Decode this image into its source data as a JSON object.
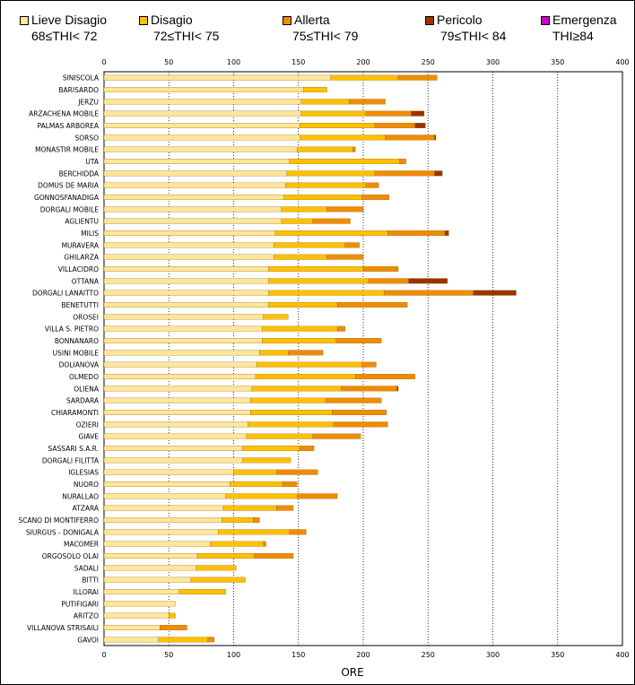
{
  "legend": [
    {
      "name": "Lieve Disagio",
      "range": "68≤THI< 72",
      "color": "#FFE699"
    },
    {
      "name": "Disagio",
      "range": "72≤THI< 75",
      "color": "#FFC000"
    },
    {
      "name": "Allerta",
      "range": "75≤THI< 79",
      "color": "#F08C00"
    },
    {
      "name": "Pericolo",
      "range": "79≤THI< 84",
      "color": "#993300"
    },
    {
      "name": "Emergenza",
      "range": "THI≥84",
      "color": "#CC00CC"
    }
  ],
  "chart_data": {
    "type": "bar",
    "orientation": "horizontal",
    "stacked": true,
    "title": "",
    "xlabel": "ORE",
    "ylabel": "",
    "xlim": [
      0,
      400
    ],
    "xticks": [
      0,
      50,
      100,
      150,
      200,
      250,
      300,
      350,
      400
    ],
    "grid": "vertical-dotted",
    "legend_position": "top",
    "categories": [
      "SINISCOLA",
      "BARISARDO",
      "JERZU",
      "ARZACHENA MOBILE",
      "PALMAS ARBOREA",
      "SORSO",
      "MONASTIR MOBILE",
      "UTA",
      "BERCHIDDA",
      "DOMUS DE MARIA",
      "GONNOSFANADIGA",
      "DORGALI MOBILE",
      "AGLIENTU",
      "MILIS",
      "MURAVERA",
      "GHILARZA",
      "VILLACIDRO",
      "OTTANA",
      "DORGALI LANAITTO",
      "BENETUTTI",
      "OROSEI",
      "VILLA S. PIETRO",
      "BONNANARO",
      "USINI MOBILE",
      "DOLIANOVA",
      "OLMEDO",
      "OLIENA",
      "SARDARA",
      "CHIARAMONTI",
      "OZIERI",
      "GIAVE",
      "SASSARI S.A.R.",
      "DORGALI FILITTA",
      "IGLESIAS",
      "NUORO",
      "NURALLAO",
      "ATZARA",
      "SCANO DI MONTIFERRO",
      "SIURGUS - DONIGALA",
      "MACOMER",
      "ORGOSOLO OLAI",
      "SADALI",
      "BITTI",
      "ILLORAI",
      "PUTIFIGARI",
      "ARITZO",
      "VILLANOVA STRISAILI",
      "GAVOI"
    ],
    "series": [
      {
        "name": "Lieve Disagio",
        "values": [
          175,
          154,
          152,
          152,
          151,
          151,
          149,
          143,
          141,
          140,
          139,
          137,
          137,
          132,
          131,
          131,
          127,
          127,
          127,
          127,
          123,
          122,
          122,
          120,
          118,
          117,
          114,
          113,
          113,
          111,
          110,
          107,
          107,
          100,
          97,
          94,
          92,
          91,
          88,
          82,
          72,
          71,
          67,
          58,
          55,
          50,
          43,
          42
        ]
      },
      {
        "name": "Disagio",
        "values": [
          52,
          18,
          37,
          50,
          58,
          66,
          43,
          85,
          68,
          62,
          60,
          35,
          24,
          87,
          55,
          41,
          73,
          77,
          89,
          53,
          19,
          58,
          57,
          22,
          81,
          77,
          69,
          58,
          63,
          66,
          51,
          44,
          37,
          33,
          41,
          55,
          41,
          24,
          55,
          41,
          44,
          31,
          42,
          36,
          0,
          5,
          0,
          38
        ]
      },
      {
        "name": "Allerta",
        "values": [
          30,
          0,
          28,
          35,
          31,
          38,
          2,
          5,
          46,
          10,
          21,
          28,
          29,
          44,
          11,
          28,
          27,
          31,
          69,
          54,
          0,
          6,
          35,
          27,
          11,
          46,
          43,
          43,
          42,
          42,
          37,
          11,
          0,
          32,
          11,
          31,
          13,
          5,
          13,
          2,
          30,
          0,
          0,
          0,
          0,
          0,
          21,
          5
        ]
      },
      {
        "name": "Pericolo",
        "values": [
          0,
          0,
          0,
          10,
          8,
          1,
          0,
          0,
          6,
          0,
          0,
          0,
          0,
          3,
          0,
          0,
          0,
          30,
          33,
          0,
          0,
          0,
          0,
          0,
          0,
          0,
          1,
          0,
          0,
          0,
          0,
          0,
          0,
          0,
          0,
          0,
          0,
          0,
          0,
          0,
          0,
          0,
          0,
          0,
          0,
          0,
          0,
          0
        ]
      },
      {
        "name": "Emergenza",
        "values": [
          0,
          0,
          0,
          0,
          0,
          0,
          0,
          0,
          0,
          0,
          0,
          0,
          0,
          0,
          0,
          0,
          0,
          0,
          0,
          0,
          0,
          0,
          0,
          0,
          0,
          0,
          0,
          0,
          0,
          0,
          0,
          0,
          0,
          0,
          0,
          0,
          0,
          0,
          0,
          0,
          0,
          0,
          0,
          0,
          0,
          0,
          0,
          0
        ]
      }
    ]
  }
}
